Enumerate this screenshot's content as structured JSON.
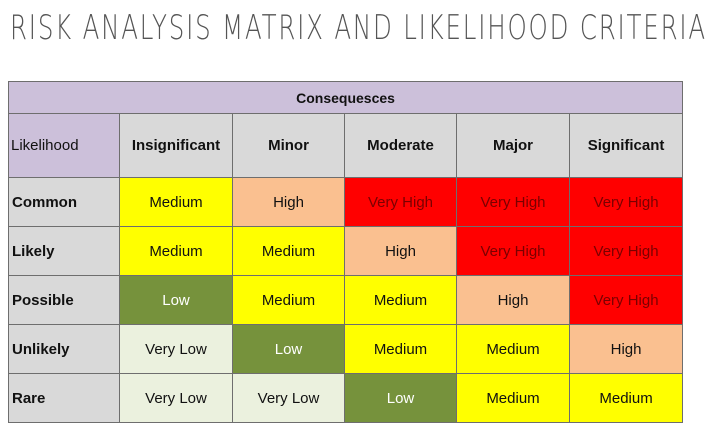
{
  "title": "RISK ANALYSIS MATRIX AND LIKELIHOOD CRITERIA",
  "matrix": {
    "band_label": "Consequesces",
    "corner_label": "Likelihood",
    "columns": [
      "Insignificant",
      "Minor",
      "Moderate",
      "Major",
      "Significant"
    ],
    "rows": [
      {
        "label": "Common",
        "cells": [
          "Medium",
          "High",
          "Very High",
          "Very High",
          "Very High"
        ]
      },
      {
        "label": "Likely",
        "cells": [
          "Medium",
          "Medium",
          "High",
          "Very High",
          "Very High"
        ]
      },
      {
        "label": "Possible",
        "cells": [
          "Low",
          "Medium",
          "Medium",
          "High",
          "Very High"
        ]
      },
      {
        "label": "Unlikely",
        "cells": [
          "Very Low",
          "Low",
          "Medium",
          "Medium",
          "High"
        ]
      },
      {
        "label": "Rare",
        "cells": [
          "Very Low",
          "Very Low",
          "Low",
          "Medium",
          "Medium"
        ]
      }
    ]
  },
  "colors": {
    "band": "#ccc0da",
    "header": "#d9d9d9",
    "very_low": "#ebf1de",
    "low": "#76923c",
    "medium": "#ffff00",
    "high": "#fac090",
    "very_high": "#ff0000"
  }
}
